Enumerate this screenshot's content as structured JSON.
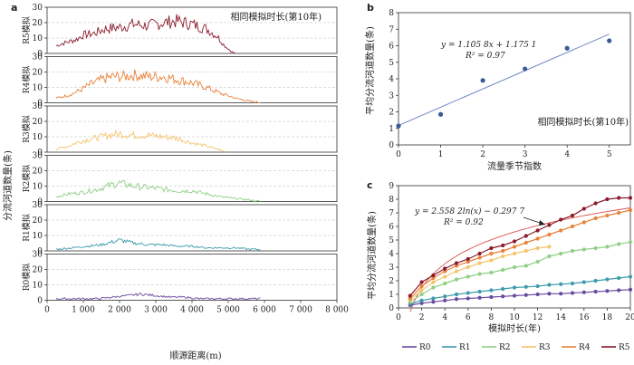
{
  "chart_data": [
    {
      "panel": "a",
      "type": "line",
      "annotation": "相同模拟时长(第10年)",
      "xlabel": "顺源距离(m)",
      "ylabel": "分流河道数量(条)",
      "xlim": [
        0,
        8000
      ],
      "xticks": [
        0,
        1000,
        2000,
        3000,
        4000,
        5000,
        6000,
        7000,
        8000
      ],
      "xtick_labels": [
        "0",
        "1 000",
        "2 000",
        "3 000",
        "4 000",
        "5 000",
        "6 000",
        "7 000",
        "8 000"
      ],
      "ylim": [
        0,
        30
      ],
      "yticks": [
        0,
        10,
        20,
        30
      ],
      "grid": "horizontal dashed",
      "series": [
        {
          "name": "R5模拟",
          "color": "#8b1a2b",
          "x_range": [
            250,
            5200
          ],
          "profile": [
            [
              250,
              5
            ],
            [
              500,
              7
            ],
            [
              800,
              9
            ],
            [
              1000,
              12
            ],
            [
              1300,
              13
            ],
            [
              1600,
              16
            ],
            [
              2000,
              17
            ],
            [
              2400,
              19
            ],
            [
              2800,
              18
            ],
            [
              3200,
              20
            ],
            [
              3600,
              21
            ],
            [
              4000,
              19
            ],
            [
              4400,
              16
            ],
            [
              4700,
              11
            ],
            [
              4900,
              5
            ],
            [
              5100,
              1
            ],
            [
              5200,
              0
            ]
          ]
        },
        {
          "name": "R4模拟",
          "color": "#e8823a",
          "x_range": [
            250,
            5900
          ],
          "profile": [
            [
              250,
              3
            ],
            [
              600,
              5
            ],
            [
              900,
              8
            ],
            [
              1200,
              12
            ],
            [
              1500,
              15
            ],
            [
              1800,
              17
            ],
            [
              2100,
              17
            ],
            [
              2400,
              18
            ],
            [
              2800,
              17
            ],
            [
              3200,
              17
            ],
            [
              3600,
              15
            ],
            [
              4000,
              13
            ],
            [
              4400,
              10
            ],
            [
              4800,
              6
            ],
            [
              5200,
              3
            ],
            [
              5600,
              1
            ],
            [
              5900,
              0
            ]
          ]
        },
        {
          "name": "R3模拟",
          "color": "#f5c46e",
          "x_range": [
            250,
            4950
          ],
          "profile": [
            [
              250,
              2
            ],
            [
              600,
              4
            ],
            [
              900,
              7
            ],
            [
              1300,
              9
            ],
            [
              1700,
              11
            ],
            [
              2000,
              12
            ],
            [
              2400,
              11
            ],
            [
              2800,
              11
            ],
            [
              3200,
              10
            ],
            [
              3600,
              9
            ],
            [
              4000,
              6
            ],
            [
              4400,
              4
            ],
            [
              4700,
              2
            ],
            [
              4950,
              0
            ]
          ]
        },
        {
          "name": "R2模拟",
          "color": "#8fcf86",
          "x_range": [
            250,
            5900
          ],
          "profile": [
            [
              250,
              3
            ],
            [
              600,
              5
            ],
            [
              1000,
              6
            ],
            [
              1400,
              8
            ],
            [
              1800,
              11
            ],
            [
              2000,
              12
            ],
            [
              2400,
              10
            ],
            [
              2800,
              9
            ],
            [
              3200,
              8
            ],
            [
              3600,
              7
            ],
            [
              4000,
              7
            ],
            [
              4400,
              5
            ],
            [
              4800,
              3
            ],
            [
              5200,
              2
            ],
            [
              5600,
              1
            ],
            [
              5900,
              0
            ]
          ]
        },
        {
          "name": "R1模拟",
          "color": "#3e9bab",
          "x_range": [
            250,
            5900
          ],
          "profile": [
            [
              250,
              1
            ],
            [
              700,
              2
            ],
            [
              1100,
              3
            ],
            [
              1500,
              4
            ],
            [
              2000,
              7
            ],
            [
              2400,
              5
            ],
            [
              2800,
              4
            ],
            [
              3200,
              4
            ],
            [
              3600,
              3
            ],
            [
              4000,
              3
            ],
            [
              4400,
              2
            ],
            [
              4800,
              2
            ],
            [
              5200,
              2
            ],
            [
              5600,
              1
            ],
            [
              5900,
              1
            ]
          ]
        },
        {
          "name": "R0模拟",
          "color": "#6a4aa0",
          "x_range": [
            250,
            5900
          ],
          "profile": [
            [
              250,
              1
            ],
            [
              800,
              1
            ],
            [
              1400,
              1
            ],
            [
              1800,
              2
            ],
            [
              2200,
              3
            ],
            [
              2600,
              4
            ],
            [
              3000,
              3
            ],
            [
              3400,
              2
            ],
            [
              3800,
              2
            ],
            [
              4200,
              1
            ],
            [
              4600,
              1
            ],
            [
              5000,
              1
            ],
            [
              5400,
              1
            ],
            [
              5900,
              1
            ]
          ]
        }
      ]
    },
    {
      "panel": "b",
      "type": "scatter",
      "annotation": "相同模拟时长(第10年)",
      "equation": "y = 1.105 8x + 1.175 1",
      "r2": "R² = 0.97",
      "xlabel": "流量季节指数",
      "ylabel": "平均分流河道数量(条)",
      "xlim": [
        0,
        5.5
      ],
      "ylim": [
        0,
        8
      ],
      "xticks": [
        0,
        1,
        2,
        3,
        4,
        5
      ],
      "yticks": [
        0,
        1,
        2,
        3,
        4,
        5,
        6,
        7,
        8
      ],
      "x": [
        0,
        1,
        2,
        3,
        4,
        5
      ],
      "y": [
        1.15,
        1.85,
        3.9,
        4.6,
        5.85,
        6.3
      ],
      "fit": {
        "slope": 1.1058,
        "intercept": 1.1751,
        "x_range": [
          0,
          5
        ]
      },
      "point_color": "#3a5a9a",
      "line_color": "#6f86c5"
    },
    {
      "panel": "c",
      "type": "line",
      "equation": "y = 2.558 2ln(x) − 0.297 7",
      "r2": "R² = 0.92",
      "xlabel": "模拟时长(年)",
      "ylabel": "平均分流河道数量(条)",
      "xlim": [
        0,
        20
      ],
      "ylim": [
        0,
        9
      ],
      "xticks": [
        0,
        2,
        4,
        6,
        8,
        10,
        12,
        14,
        16,
        18,
        20
      ],
      "yticks": [
        0,
        1,
        2,
        3,
        4,
        5,
        6,
        7,
        8,
        9
      ],
      "fit": {
        "a": 2.5582,
        "b": -0.2977,
        "x_range": [
          1,
          20
        ],
        "color": "#d9534f"
      },
      "series": [
        {
          "name": "R0",
          "color": "#6a4aa0",
          "x": [
            1,
            2,
            3,
            4,
            5,
            6,
            7,
            8,
            9,
            10,
            11,
            12,
            13,
            14,
            15,
            16,
            17,
            18,
            19,
            20
          ],
          "y": [
            0.2,
            0.35,
            0.45,
            0.55,
            0.65,
            0.7,
            0.75,
            0.8,
            0.85,
            0.9,
            0.95,
            1.0,
            1.05,
            1.05,
            1.1,
            1.15,
            1.2,
            1.25,
            1.3,
            1.35
          ]
        },
        {
          "name": "R1",
          "color": "#3e9bab",
          "x": [
            1,
            2,
            3,
            4,
            5,
            6,
            7,
            8,
            9,
            10,
            11,
            12,
            13,
            14,
            15,
            16,
            17,
            18,
            19,
            20
          ],
          "y": [
            0.3,
            0.55,
            0.7,
            0.85,
            1.0,
            1.1,
            1.2,
            1.3,
            1.4,
            1.5,
            1.55,
            1.6,
            1.7,
            1.75,
            1.8,
            1.9,
            2.0,
            2.1,
            2.2,
            2.3
          ]
        },
        {
          "name": "R2",
          "color": "#8fcf86",
          "x": [
            1,
            2,
            3,
            4,
            5,
            6,
            7,
            8,
            9,
            10,
            11,
            12,
            13,
            14,
            15,
            16,
            17,
            18,
            19,
            20
          ],
          "y": [
            0.45,
            1.0,
            1.5,
            1.8,
            2.1,
            2.3,
            2.5,
            2.6,
            2.8,
            3.0,
            3.1,
            3.4,
            3.8,
            4.0,
            4.2,
            4.3,
            4.4,
            4.5,
            4.7,
            4.85
          ]
        },
        {
          "name": "R3",
          "color": "#f5c46e",
          "x": [
            1,
            2,
            3,
            4,
            5,
            6,
            7,
            8,
            9,
            10,
            11,
            12,
            13
          ],
          "y": [
            0.6,
            1.3,
            1.9,
            2.3,
            2.7,
            3.0,
            3.3,
            3.5,
            3.8,
            4.0,
            4.2,
            4.4,
            4.5
          ]
        },
        {
          "name": "R4",
          "color": "#e8823a",
          "x": [
            1,
            2,
            3,
            4,
            5,
            6,
            7,
            8,
            9,
            10,
            11,
            12,
            13,
            14,
            15,
            16,
            17,
            18,
            19,
            20
          ],
          "y": [
            0.7,
            1.6,
            2.2,
            2.7,
            3.1,
            3.4,
            3.7,
            4.0,
            4.2,
            4.5,
            4.8,
            5.1,
            5.4,
            5.7,
            6.0,
            6.3,
            6.6,
            6.8,
            7.0,
            7.2
          ]
        },
        {
          "name": "R5",
          "color": "#8b1a2b",
          "x": [
            1,
            2,
            3,
            4,
            5,
            6,
            7,
            8,
            9,
            10,
            11,
            12,
            13,
            14,
            15,
            16,
            17,
            18,
            19,
            20
          ],
          "y": [
            0.9,
            1.9,
            2.4,
            2.9,
            3.3,
            3.6,
            4.0,
            4.4,
            4.6,
            4.9,
            5.3,
            5.7,
            6.1,
            6.5,
            6.8,
            7.3,
            7.7,
            8.0,
            8.1,
            8.1
          ]
        }
      ]
    }
  ]
}
